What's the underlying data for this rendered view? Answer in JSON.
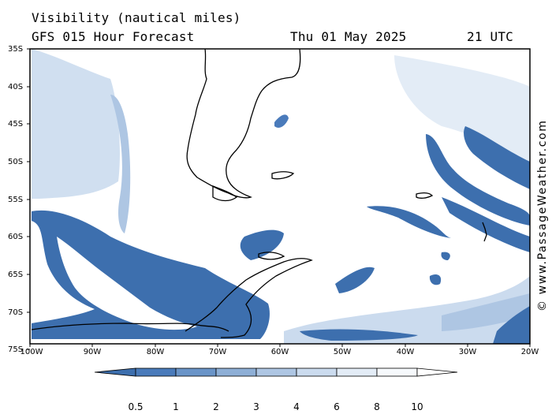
{
  "header": {
    "title": "Visibility (nautical miles)",
    "subtitle": "GFS 015 Hour Forecast",
    "date": "Thu 01 May 2025",
    "time": "21 UTC"
  },
  "lat_labels": [
    "35S",
    "40S",
    "45S",
    "50S",
    "55S",
    "60S",
    "65S",
    "70S",
    "75S"
  ],
  "lon_labels": [
    "100W",
    "90W",
    "80W",
    "70W",
    "60W",
    "50W",
    "40W",
    "30W",
    "20W"
  ],
  "colorbar": {
    "labels": [
      "0.5",
      "1",
      "2",
      "3",
      "4",
      "6",
      "8",
      "10"
    ],
    "colors": [
      "#3d6fae",
      "#4a7bbb",
      "#6a94c8",
      "#8eafd6",
      "#aec6e3",
      "#cbdbee",
      "#e3ecf6",
      "#f6f9fc"
    ]
  },
  "credit": "© www.PassageWeather.com",
  "colors": {
    "dense_fog": "#3d6fae",
    "mid_fog": "#8eafd6",
    "light_fog": "#cbdbee",
    "coast": "#000000"
  }
}
